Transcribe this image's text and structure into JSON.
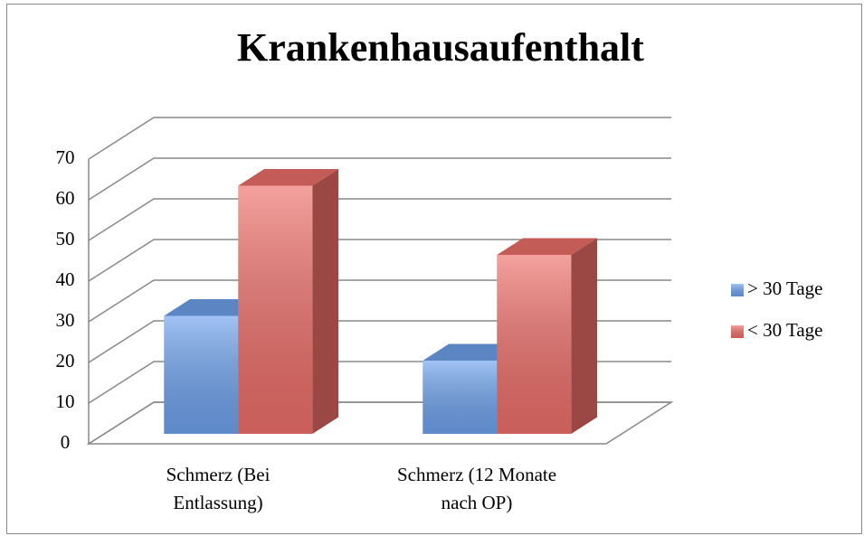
{
  "chart_data": {
    "type": "bar3d",
    "title": "Krankenhausaufenthalt",
    "categories": [
      [
        "Schmerz (Bei",
        "Entlassung)"
      ],
      [
        "Schmerz (12 Monate",
        "nach OP)"
      ]
    ],
    "series": [
      {
        "name": "> 30 Tage",
        "color": "#6fa3ee",
        "values": [
          29,
          18
        ]
      },
      {
        "name": "< 30 Tage",
        "color": "#ee6f6a",
        "values": [
          61,
          44
        ]
      }
    ],
    "ylim": [
      0,
      70
    ],
    "yticks": [
      0,
      10,
      20,
      30,
      40,
      50,
      60,
      70
    ],
    "grid": true,
    "legend": "right"
  }
}
